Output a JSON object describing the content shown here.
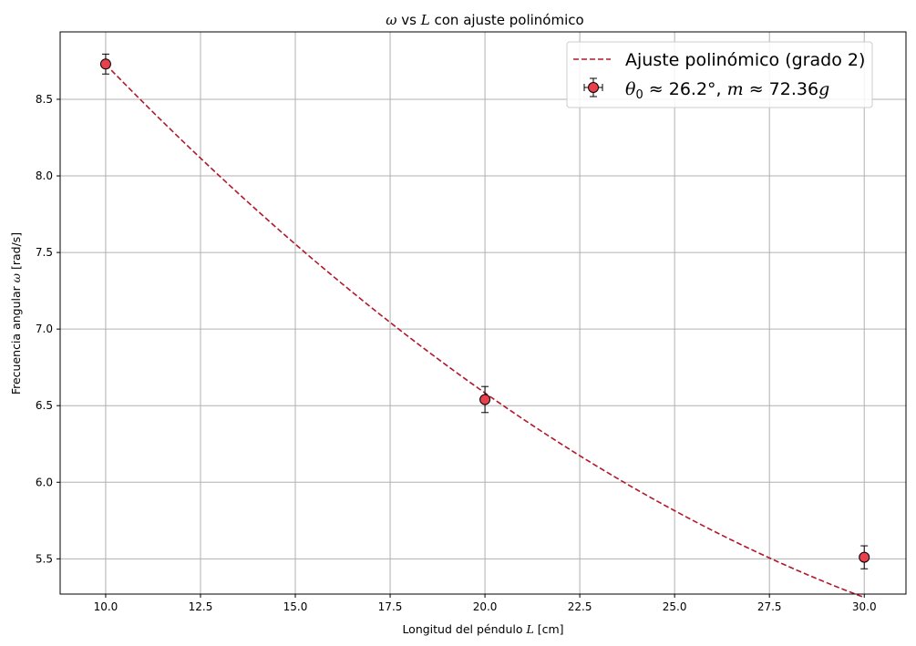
{
  "chart_data": {
    "type": "scatter",
    "title": {
      "pre": "",
      "omega": "ω",
      "mid": " vs ",
      "L": "L",
      "post": " con ajuste polinómico"
    },
    "xlabel": {
      "pre": "Longitud del péndulo ",
      "L": "L",
      "post": " [cm]"
    },
    "ylabel": {
      "pre": "Frecuencia angular ",
      "omega": "ω",
      "post": " [rad/s]"
    },
    "xlim": [
      8.8,
      31.1
    ],
    "ylim": [
      5.27,
      8.94
    ],
    "x_ticks": [
      10.0,
      12.5,
      15.0,
      17.5,
      20.0,
      22.5,
      25.0,
      27.5,
      30.0
    ],
    "x_tick_labels": [
      "10.0",
      "12.5",
      "15.0",
      "17.5",
      "20.0",
      "22.5",
      "25.0",
      "27.5",
      "30.0"
    ],
    "y_ticks": [
      5.5,
      6.0,
      6.5,
      7.0,
      7.5,
      8.0,
      8.5
    ],
    "y_tick_labels": [
      "5.5",
      "6.0",
      "6.5",
      "7.0",
      "7.5",
      "8.0",
      "8.5"
    ],
    "grid": true,
    "legend_position": "top-right",
    "series": [
      {
        "kind": "fit-line",
        "legend": "Ajuste polinómico (grado 2)",
        "color": "#b2182b",
        "fit_coefficients": [
          0.00405,
          -0.336,
          11.683
        ],
        "x_range": [
          10.0,
          30.0
        ]
      },
      {
        "kind": "points",
        "legend": {
          "theta": "θ",
          "sub": "0",
          "rest1": " ≈ 26.2°, ",
          "m": "m",
          "rest2": " ≈ 72.36",
          "g": "g"
        },
        "marker_color": "#e8414d",
        "edge_color": "#000000",
        "x": [
          10.0,
          20.0,
          30.0
        ],
        "y": [
          8.73,
          6.54,
          5.51
        ],
        "yerr": [
          0.065,
          0.085,
          0.075
        ]
      }
    ]
  }
}
